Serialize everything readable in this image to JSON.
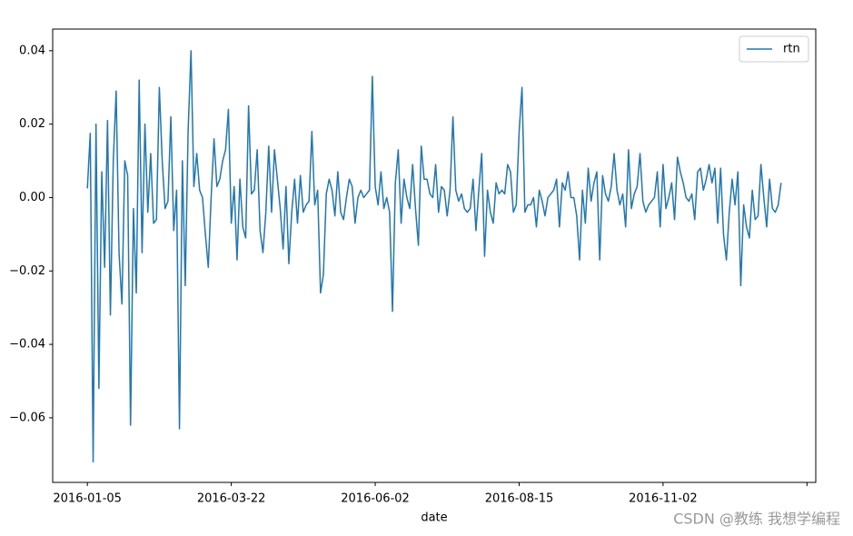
{
  "chart_data": {
    "type": "line",
    "xlabel": "date",
    "categories": [
      "2016-01-05",
      null,
      null,
      null,
      null,
      null,
      null,
      null,
      null,
      null,
      null,
      null,
      null,
      null,
      null,
      null,
      null,
      null,
      null,
      null,
      null,
      null,
      null,
      null,
      null,
      null,
      null,
      null,
      null,
      null,
      null,
      null,
      null,
      null,
      null,
      null,
      null,
      null,
      null,
      null,
      null,
      null,
      null,
      null,
      null,
      null,
      null,
      null,
      null,
      null,
      "2016-03-22",
      null,
      null,
      null,
      null,
      null,
      null,
      null,
      null,
      null,
      null,
      null,
      null,
      null,
      null,
      null,
      null,
      null,
      null,
      null,
      null,
      null,
      null,
      null,
      null,
      null,
      null,
      null,
      null,
      null,
      null,
      null,
      null,
      null,
      null,
      null,
      null,
      null,
      null,
      null,
      null,
      null,
      null,
      null,
      null,
      null,
      null,
      null,
      null,
      null,
      "2016-06-02",
      null,
      null,
      null,
      null,
      null,
      null,
      null,
      null,
      null,
      null,
      null,
      null,
      null,
      null,
      null,
      null,
      null,
      null,
      null,
      null,
      null,
      null,
      null,
      null,
      null,
      null,
      null,
      null,
      null,
      null,
      null,
      null,
      null,
      null,
      null,
      null,
      null,
      null,
      null,
      null,
      null,
      null,
      null,
      null,
      null,
      null,
      null,
      null,
      null,
      "2016-08-15",
      null,
      null,
      null,
      null,
      null,
      null,
      null,
      null,
      null,
      null,
      null,
      null,
      null,
      null,
      null,
      null,
      null,
      null,
      null,
      null,
      null,
      null,
      null,
      null,
      null,
      null,
      null,
      null,
      null,
      null,
      null,
      null,
      null,
      null,
      null,
      null,
      null,
      null,
      null,
      null,
      null,
      null,
      null,
      null,
      null,
      null,
      null,
      null,
      null,
      "2016-11-02",
      null,
      null,
      null,
      null,
      null,
      null,
      null,
      null,
      null,
      null,
      null,
      null,
      null,
      null,
      null,
      null,
      null,
      null,
      null,
      null,
      null,
      null,
      null,
      null,
      null,
      null,
      null,
      null,
      null,
      null,
      null,
      null,
      null,
      null,
      null,
      null,
      null,
      null,
      null,
      null,
      null
    ],
    "series": [
      {
        "name": "rtn",
        "color": "#1f77b4",
        "values": [
          0.0025,
          0.0175,
          -0.072,
          0.02,
          -0.052,
          0.007,
          -0.019,
          0.021,
          -0.032,
          0.01,
          0.029,
          -0.015,
          -0.029,
          0.01,
          0.006,
          -0.062,
          -0.003,
          -0.026,
          0.032,
          -0.015,
          0.02,
          -0.004,
          0.012,
          -0.007,
          -0.006,
          0.03,
          0.01,
          -0.003,
          -0.001,
          0.022,
          -0.009,
          0.002,
          -0.063,
          0.01,
          -0.024,
          0.018,
          0.04,
          0.003,
          0.012,
          0.002,
          0.0,
          -0.01,
          -0.019,
          0.0,
          0.016,
          0.003,
          0.005,
          0.01,
          0.013,
          0.024,
          -0.007,
          0.003,
          -0.017,
          0.005,
          -0.008,
          -0.011,
          0.025,
          0.001,
          0.002,
          0.013,
          -0.009,
          -0.015,
          -0.004,
          0.014,
          -0.004,
          0.013,
          0.005,
          -0.003,
          -0.014,
          0.003,
          -0.018,
          -0.004,
          0.005,
          -0.007,
          0.006,
          -0.004,
          -0.002,
          -0.001,
          0.018,
          -0.002,
          0.002,
          -0.026,
          -0.021,
          0.001,
          0.005,
          0.002,
          -0.005,
          0.007,
          -0.004,
          -0.006,
          0.0,
          0.005,
          0.003,
          -0.007,
          0.0,
          0.002,
          0.0,
          0.001,
          0.002,
          0.033,
          0.003,
          -0.002,
          0.007,
          -0.003,
          0.0,
          -0.004,
          -0.031,
          0.004,
          0.013,
          -0.007,
          0.005,
          0.0,
          -0.003,
          0.009,
          -0.003,
          -0.013,
          0.014,
          0.005,
          0.005,
          0.001,
          0.0,
          0.009,
          -0.004,
          0.003,
          0.002,
          -0.005,
          0.002,
          0.022,
          0.002,
          -0.001,
          0.001,
          -0.003,
          -0.004,
          -0.003,
          0.005,
          -0.009,
          0.002,
          0.012,
          -0.016,
          0.002,
          -0.004,
          -0.007,
          0.004,
          0.001,
          0.002,
          0.001,
          0.009,
          0.007,
          -0.004,
          -0.002,
          0.018,
          0.03,
          -0.004,
          -0.002,
          -0.002,
          0.0,
          -0.008,
          0.002,
          -0.001,
          -0.005,
          0.0,
          0.001,
          0.002,
          0.005,
          -0.008,
          0.004,
          0.002,
          0.007,
          0.0,
          0.0,
          -0.005,
          -0.017,
          0.002,
          -0.007,
          0.008,
          -0.001,
          0.004,
          0.007,
          -0.017,
          0.006,
          0.001,
          -0.001,
          0.003,
          0.012,
          0.002,
          -0.002,
          0.001,
          -0.008,
          0.013,
          -0.003,
          0.001,
          0.003,
          0.012,
          -0.001,
          -0.004,
          -0.002,
          -0.001,
          0.0,
          0.007,
          -0.008,
          0.009,
          -0.003,
          0.0,
          0.004,
          -0.006,
          0.011,
          0.007,
          0.004,
          0.0,
          -0.001,
          0.001,
          -0.006,
          0.007,
          0.008,
          0.002,
          0.005,
          0.009,
          0.004,
          0.008,
          -0.007,
          0.008,
          -0.01,
          -0.017,
          -0.004,
          0.005,
          -0.002,
          0.007,
          -0.024,
          -0.002,
          -0.008,
          -0.011,
          0.002,
          -0.006,
          -0.005,
          0.009,
          0.0,
          -0.008,
          0.005,
          -0.003,
          -0.004,
          -0.002,
          0.004
        ]
      }
    ],
    "xlim": [
      -12.05,
      253.05
    ],
    "xticks": [
      0,
      50,
      100,
      150,
      200,
      250
    ],
    "ylim": [
      -0.0776,
      0.0459
    ],
    "yticks": [
      {
        "value": -0.06,
        "label": "−0.06"
      },
      {
        "value": -0.04,
        "label": "−0.04"
      },
      {
        "value": -0.02,
        "label": "−0.02"
      },
      {
        "value": 0,
        "label": "0.00"
      },
      0.02,
      0.04
    ],
    "legend": "upper right",
    "watermark": "CSDN @教练 我想学编程"
  }
}
